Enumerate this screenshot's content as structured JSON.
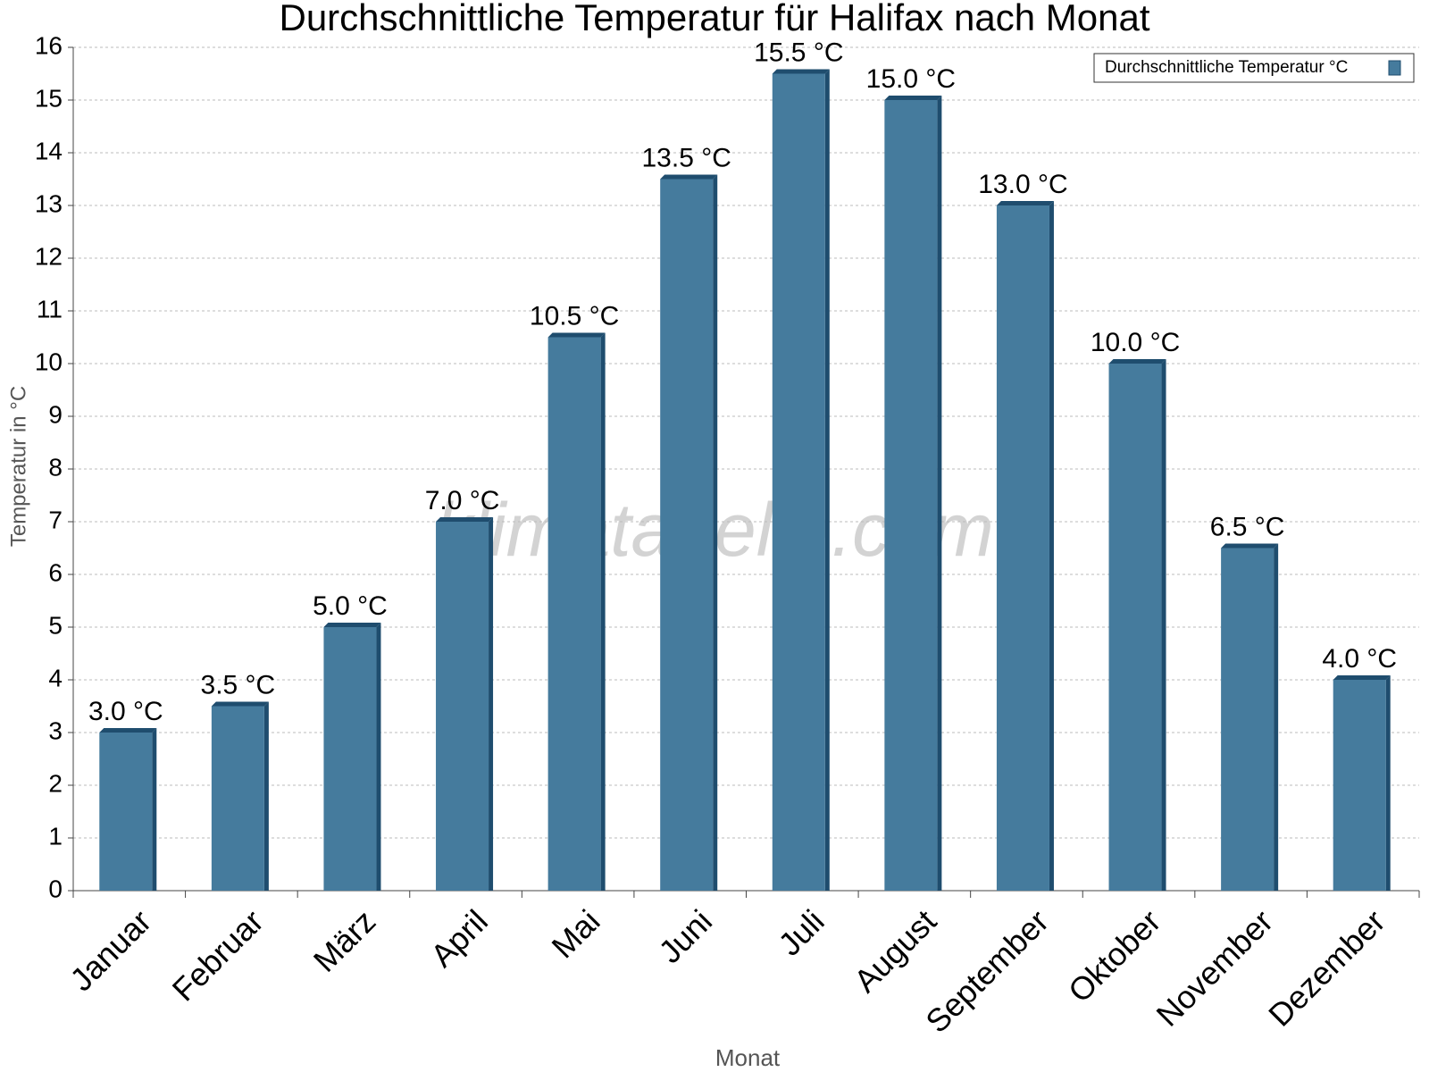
{
  "chart_data": {
    "type": "bar",
    "title": "Durchschnittliche Temperatur für Halifax nach Monat",
    "x_label": "Monat",
    "y_label": "Temperatur in °C",
    "watermark": "klimatabelle.com",
    "categories": [
      "Januar",
      "Februar",
      "März",
      "April",
      "Mai",
      "Juni",
      "Juli",
      "August",
      "September",
      "Oktober",
      "November",
      "Dezember"
    ],
    "series": [
      {
        "name": "Durchschnittliche Temperatur °C",
        "color": "#457b9d",
        "values": [
          3.0,
          3.5,
          5.0,
          7.0,
          10.5,
          13.5,
          15.5,
          15.0,
          13.0,
          10.0,
          6.5,
          4.0
        ],
        "value_labels": [
          "3.0 °C",
          "3.5 °C",
          "5.0 °C",
          "7.0 °C",
          "10.5 °C",
          "13.5 °C",
          "15.5 °C",
          "15.0 °C",
          "13.0 °C",
          "10.0 °C",
          "6.5 °C",
          "4.0 °C"
        ]
      }
    ],
    "ylim": [
      0,
      16
    ],
    "yticks": [
      0,
      1,
      2,
      3,
      4,
      5,
      6,
      7,
      8,
      9,
      10,
      11,
      12,
      13,
      14,
      15,
      16
    ],
    "grid": true,
    "legend": "top-right"
  }
}
